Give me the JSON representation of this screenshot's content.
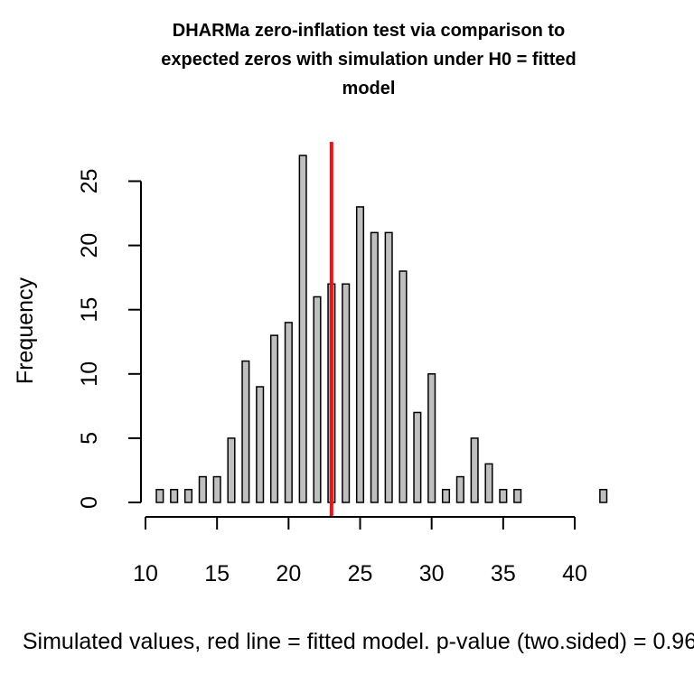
{
  "chart_data": {
    "type": "bar",
    "title_lines": [
      "DHARMa zero-inflation test via comparison to",
      "expected zeros with simulation under H0 = fitted",
      "model"
    ],
    "xlabel": "Simulated values, red line = fitted model. p-value (two.sided) = 0.96",
    "ylabel": "Frequency",
    "xlim": [
      10,
      42
    ],
    "ylim": [
      0,
      27
    ],
    "x_ticks": [
      10,
      15,
      20,
      25,
      30,
      35,
      40
    ],
    "y_ticks": [
      0,
      5,
      10,
      15,
      20,
      25
    ],
    "bins": [
      {
        "x": 11,
        "count": 1
      },
      {
        "x": 12,
        "count": 1
      },
      {
        "x": 13,
        "count": 1
      },
      {
        "x": 14,
        "count": 2
      },
      {
        "x": 15,
        "count": 2
      },
      {
        "x": 16,
        "count": 5
      },
      {
        "x": 17,
        "count": 11
      },
      {
        "x": 18,
        "count": 9
      },
      {
        "x": 19,
        "count": 13
      },
      {
        "x": 20,
        "count": 14
      },
      {
        "x": 21,
        "count": 27
      },
      {
        "x": 22,
        "count": 16
      },
      {
        "x": 23,
        "count": 17
      },
      {
        "x": 24,
        "count": 17
      },
      {
        "x": 25,
        "count": 23
      },
      {
        "x": 26,
        "count": 21
      },
      {
        "x": 27,
        "count": 21
      },
      {
        "x": 28,
        "count": 18
      },
      {
        "x": 29,
        "count": 7
      },
      {
        "x": 30,
        "count": 10
      },
      {
        "x": 31,
        "count": 1
      },
      {
        "x": 32,
        "count": 2
      },
      {
        "x": 33,
        "count": 5
      },
      {
        "x": 34,
        "count": 3
      },
      {
        "x": 35,
        "count": 1
      },
      {
        "x": 36,
        "count": 1
      },
      {
        "x": 37,
        "count": 0
      },
      {
        "x": 38,
        "count": 0
      },
      {
        "x": 39,
        "count": 0
      },
      {
        "x": 40,
        "count": 0
      },
      {
        "x": 41,
        "count": 0
      },
      {
        "x": 42,
        "count": 1
      }
    ],
    "fitted_value": 23,
    "fitted_line_color": "#e8141b",
    "bar_color": "#bfbfbf",
    "grid": false
  }
}
